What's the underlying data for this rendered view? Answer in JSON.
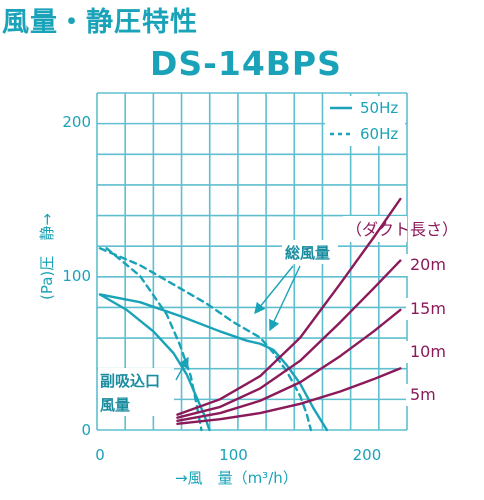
{
  "page": {
    "title": "風量・静圧特性",
    "model": "DS-14BPS"
  },
  "colors": {
    "accent": "#1aa3b8",
    "duct": "#8b1a5a",
    "grid": "#5fbfcf"
  },
  "chart_data": {
    "type": "line",
    "xlabel": "→風　量（m³/h）",
    "ylabel": "(Pa)圧　静→",
    "ylabel_parts": {
      "unit": "(Pa)",
      "text": "圧",
      "arrow": "→",
      "text2": "静"
    },
    "xlim": [
      0,
      230
    ],
    "ylim": [
      0,
      200
    ],
    "x_ticks": [
      0,
      100,
      200
    ],
    "y_ticks": [
      0,
      100,
      200
    ],
    "x_tick_labels": [
      "0",
      "100",
      "200"
    ],
    "y_tick_labels": [
      "0",
      "100",
      "200"
    ],
    "grid": true,
    "legend_position": "top-right",
    "legend": [
      {
        "label": "50Hz",
        "style": "solid"
      },
      {
        "label": "60Hz",
        "style": "dashed"
      }
    ],
    "series": [
      {
        "name": "総風量 50Hz",
        "style": "solid",
        "color": "#1aa3b8",
        "x": [
          0,
          30,
          60,
          90,
          110,
          120,
          130,
          140,
          150,
          160,
          170
        ],
        "y": [
          88,
          83,
          74,
          64,
          58,
          56,
          52,
          42,
          30,
          14,
          0
        ]
      },
      {
        "name": "総風量 60Hz",
        "style": "dashed",
        "color": "#1aa3b8",
        "x": [
          0,
          30,
          60,
          80,
          100,
          120,
          130,
          140,
          150,
          155,
          158
        ],
        "y": [
          118,
          107,
          92,
          82,
          70,
          60,
          50,
          38,
          22,
          10,
          0
        ]
      },
      {
        "name": "副吸込口風量 50Hz",
        "style": "solid",
        "color": "#1aa3b8",
        "x": [
          0,
          20,
          40,
          55,
          65,
          72,
          78,
          82
        ],
        "y": [
          88,
          78,
          64,
          50,
          36,
          22,
          10,
          0
        ]
      },
      {
        "name": "副吸込口風量 60Hz",
        "style": "dashed",
        "color": "#1aa3b8",
        "x": [
          5,
          30,
          50,
          60,
          68,
          72,
          76
        ],
        "y": [
          118,
          100,
          75,
          55,
          35,
          18,
          0
        ]
      },
      {
        "name": "20m",
        "style": "solid",
        "color": "#8b1a5a",
        "x": [
          58,
          90,
          120,
          150,
          180,
          205,
          225
        ],
        "y": [
          10,
          20,
          35,
          60,
          95,
          125,
          150
        ]
      },
      {
        "name": "15m",
        "style": "solid",
        "color": "#8b1a5a",
        "x": [
          58,
          90,
          120,
          150,
          180,
          205,
          225
        ],
        "y": [
          8,
          15,
          27,
          45,
          70,
          92,
          110
        ]
      },
      {
        "name": "10m",
        "style": "solid",
        "color": "#8b1a5a",
        "x": [
          58,
          90,
          120,
          150,
          180,
          205,
          225
        ],
        "y": [
          6,
          11,
          19,
          31,
          48,
          64,
          78
        ]
      },
      {
        "name": "5m",
        "style": "solid",
        "color": "#8b1a5a",
        "x": [
          58,
          90,
          120,
          150,
          180,
          205,
          225
        ],
        "y": [
          4,
          7,
          11,
          17,
          25,
          33,
          40
        ]
      }
    ],
    "duct_header": "（ダクト長さ）",
    "duct_labels": [
      "20m",
      "15m",
      "10m",
      "5m"
    ],
    "annotations": {
      "total": "総風量",
      "sub_line1": "副吸込口",
      "sub_line2": "風量"
    }
  }
}
